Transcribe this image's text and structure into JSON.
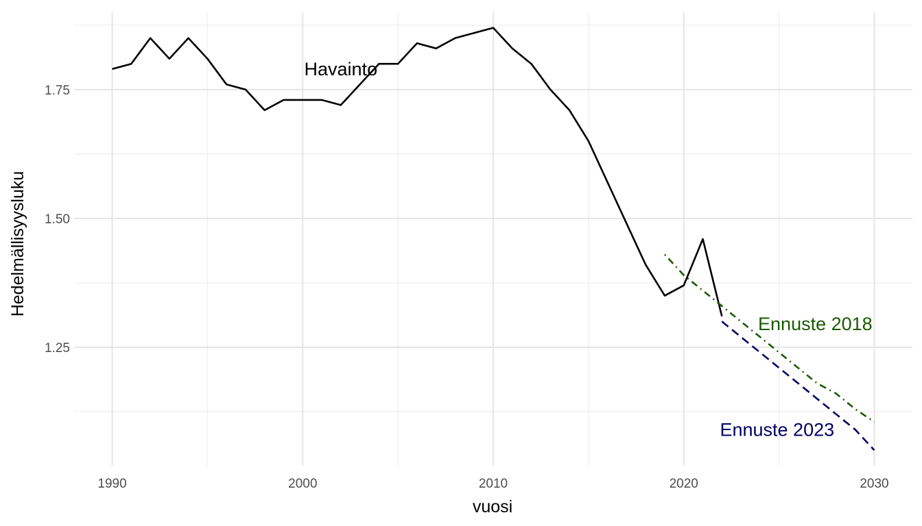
{
  "chart_data": {
    "type": "line",
    "title": "",
    "xlabel": "vuosi",
    "ylabel": "Hedelmällisyysluku",
    "xlim": [
      1988.0,
      2032.0
    ],
    "ylim": [
      1.02,
      1.9
    ],
    "x_ticks": [
      1990,
      2000,
      2010,
      2020,
      2030
    ],
    "x_tick_labels": [
      "1990",
      "2000",
      "2010",
      "2020",
      "2030"
    ],
    "x_minor": [
      1995,
      2005,
      2015,
      2025
    ],
    "y_ticks": [
      1.25,
      1.5,
      1.75
    ],
    "y_tick_labels": [
      "1.25",
      "1.50",
      "1.75"
    ],
    "y_minor": [
      1.125,
      1.375,
      1.625,
      1.875
    ],
    "grid": true,
    "legend": "none (direct labels)",
    "series": [
      {
        "name": "Havainto",
        "color": "#000000",
        "dash": "solid",
        "label_at": [
          2002,
          1.79
        ],
        "x": [
          1990,
          1991,
          1992,
          1993,
          1994,
          1995,
          1996,
          1997,
          1998,
          1999,
          2000,
          2001,
          2002,
          2003,
          2004,
          2005,
          2006,
          2007,
          2008,
          2009,
          2010,
          2011,
          2012,
          2013,
          2014,
          2015,
          2016,
          2017,
          2018,
          2019,
          2020,
          2021,
          2022
        ],
        "values": [
          1.79,
          1.8,
          1.85,
          1.81,
          1.85,
          1.81,
          1.76,
          1.75,
          1.71,
          1.73,
          1.73,
          1.73,
          1.72,
          1.76,
          1.8,
          1.8,
          1.84,
          1.83,
          1.85,
          1.86,
          1.87,
          1.83,
          1.8,
          1.75,
          1.71,
          1.65,
          1.57,
          1.49,
          1.41,
          1.35,
          1.37,
          1.46,
          1.31
        ]
      },
      {
        "name": "Ennuste 2018",
        "color": "#1a5a00",
        "dash": "dotdash",
        "label_at": [
          2026.9,
          1.295
        ],
        "x": [
          2019,
          2020,
          2021,
          2022,
          2023,
          2024,
          2025,
          2026,
          2027,
          2028,
          2029,
          2030
        ],
        "values": [
          1.43,
          1.39,
          1.36,
          1.33,
          1.3,
          1.27,
          1.24,
          1.21,
          1.18,
          1.16,
          1.13,
          1.105
        ]
      },
      {
        "name": "Ennuste 2023",
        "color": "#000066",
        "dash": "dashed",
        "label_at": [
          2024.9,
          1.09
        ],
        "x": [
          2022,
          2023,
          2024,
          2025,
          2026,
          2027,
          2028,
          2029,
          2030
        ],
        "values": [
          1.3,
          1.27,
          1.24,
          1.21,
          1.18,
          1.15,
          1.12,
          1.09,
          1.05
        ]
      }
    ]
  }
}
